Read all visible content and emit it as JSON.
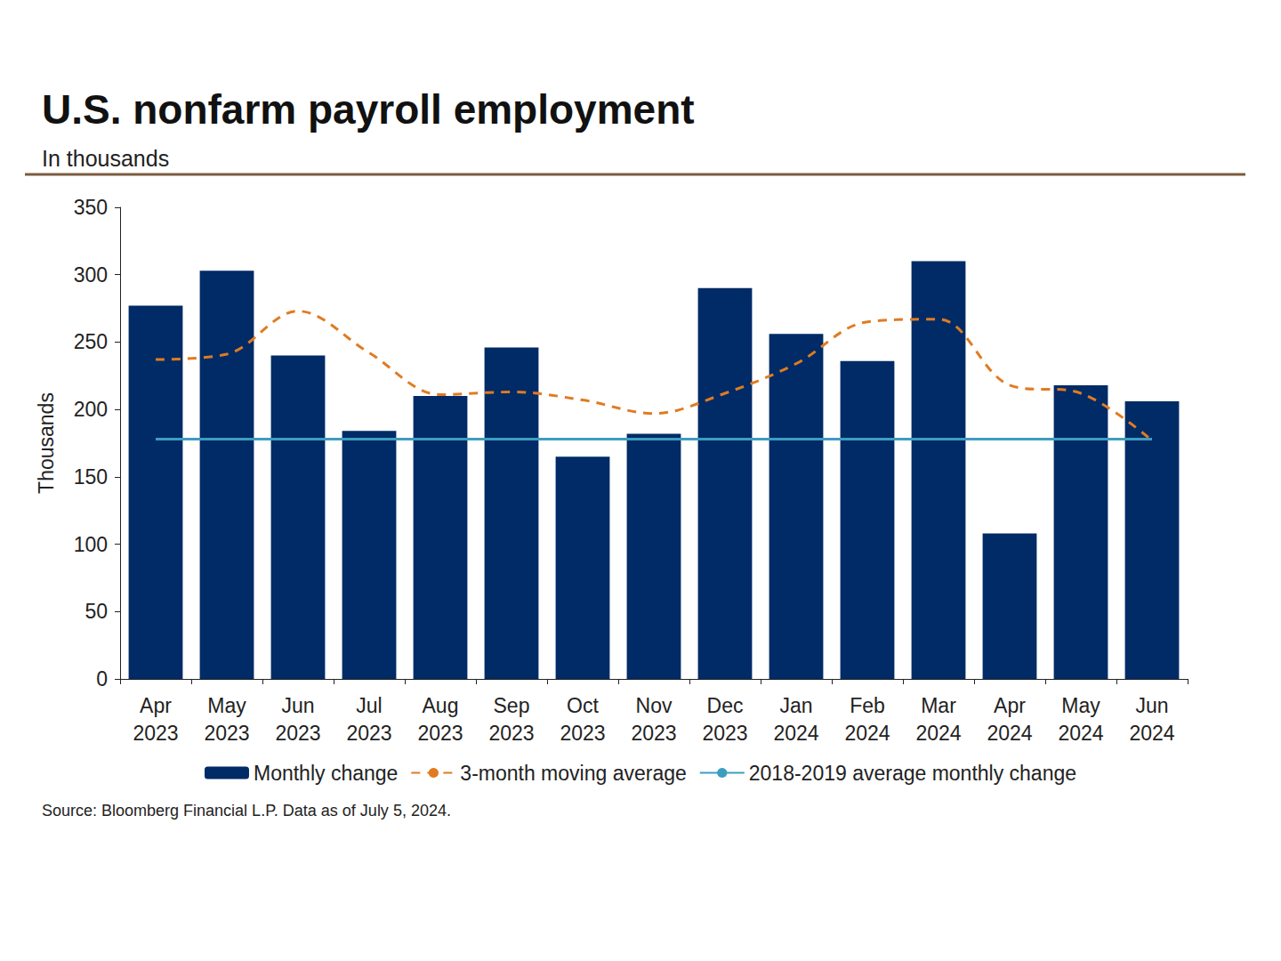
{
  "chart_data": {
    "type": "bar",
    "title": "U.S. nonfarm payroll employment",
    "subtitle": "In thousands",
    "y_label": "Thousands",
    "source": "Source: Bloomberg Financial L.P. Data as of July 5, 2024.",
    "categories": [
      "Apr 2023",
      "May 2023",
      "Jun 2023",
      "Jul 2023",
      "Aug 2023",
      "Sep 2023",
      "Oct 2023",
      "Nov 2023",
      "Dec 2023",
      "Jan 2024",
      "Feb 2024",
      "Mar 2024",
      "Apr 2024",
      "May 2024",
      "Jun 2024"
    ],
    "series": [
      {
        "name": "Monthly change",
        "type": "bar",
        "color": "#002b66",
        "values": [
          277,
          303,
          240,
          184,
          210,
          246,
          165,
          182,
          290,
          256,
          236,
          310,
          108,
          218,
          206
        ]
      },
      {
        "name": "3-month moving average",
        "type": "line",
        "line_style": "dashed",
        "color": "#e07b22",
        "values": [
          237,
          241,
          273,
          242,
          211,
          213,
          207,
          197,
          212,
          234,
          265,
          267,
          218,
          212,
          177
        ]
      },
      {
        "name": "2018-2019 average monthly change",
        "type": "line",
        "line_style": "solid",
        "color": "#3d9dc1",
        "values": [
          178,
          178,
          178,
          178,
          178,
          178,
          178,
          178,
          178,
          178,
          178,
          178,
          178,
          178,
          178
        ]
      }
    ],
    "ylim": [
      0,
      350
    ],
    "yticks": [
      0,
      50,
      100,
      150,
      200,
      250,
      300,
      350
    ],
    "grid": false,
    "legend": "bottom"
  }
}
